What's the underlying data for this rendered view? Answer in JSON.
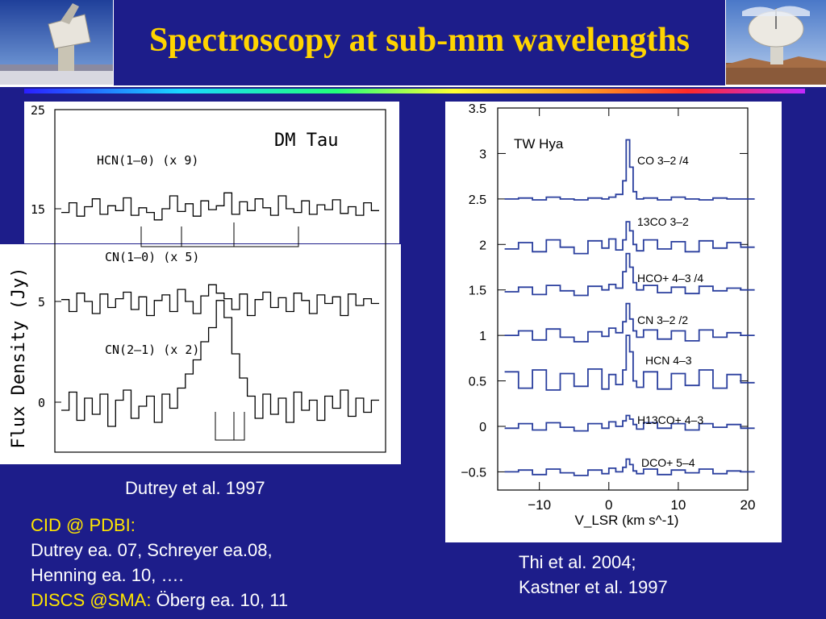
{
  "slide": {
    "title": "Spectroscopy at sub-mm wavelengths",
    "caption_left": "Dutrey et al. 1997",
    "refs": {
      "cid_label": "CID @ PDBI:",
      "line1": "Dutrey ea. 07, Schreyer ea.08,",
      "line2": "Henning ea. 10, ….",
      "discs_label": "DISCS @SMA:",
      "discs_text": " Öberg ea. 10, 11"
    },
    "caption_right": [
      "Thi et al. 2004;",
      "Kastner et al. 1997"
    ]
  },
  "colors": {
    "background": "#1d1d8a",
    "title": "#ffd400",
    "yellow_text": "#ffe600",
    "spectrum_blue": "#2a3f9e"
  },
  "chart_data": [
    {
      "type": "line",
      "title": "DM Tau",
      "xlabel": "",
      "ylabel": "Flux Density (Jy)",
      "ylim": [
        -4,
        25
      ],
      "yticks": [
        "25",
        "15",
        "5",
        "0"
      ],
      "grid": false,
      "series": [
        {
          "name": "HCN(1–0) (x 9)",
          "x": [
            -20,
            -19,
            -18,
            -17,
            -16,
            -15,
            -14,
            -13,
            -12,
            -11,
            -10,
            -9,
            -8,
            -7,
            -6,
            -5,
            -4,
            -3,
            -2,
            -1,
            0,
            1,
            2,
            3,
            4,
            5,
            6,
            7,
            8,
            9,
            10,
            11,
            12,
            13,
            14,
            15,
            16,
            17,
            18,
            19,
            20
          ],
          "values": [
            14.6,
            15.6,
            14.2,
            15.2,
            16.0,
            14.4,
            15.3,
            14.8,
            16.1,
            14.3,
            15.1,
            14.6,
            13.8,
            15.0,
            16.3,
            14.7,
            15.5,
            14.2,
            15.8,
            14.9,
            15.3,
            16.6,
            14.4,
            15.7,
            14.8,
            16.0,
            15.1,
            14.3,
            16.3,
            15.0,
            14.6,
            15.8,
            14.4,
            15.4,
            14.9,
            15.9,
            14.5,
            15.2,
            14.3,
            15.6,
            14.8
          ]
        },
        {
          "name": "CN(1–0) (x 5)",
          "x": [
            -20,
            -19,
            -18,
            -17,
            -16,
            -15,
            -14,
            -13,
            -12,
            -11,
            -10,
            -9,
            -8,
            -7,
            -6,
            -5,
            -4,
            -3,
            -2,
            -1,
            0,
            1,
            2,
            3,
            4,
            5,
            6,
            7,
            8,
            9,
            10,
            11,
            12,
            13,
            14,
            15,
            16,
            17,
            18,
            19,
            20
          ],
          "values": [
            5.2,
            4.5,
            5.9,
            5.0,
            4.4,
            5.8,
            4.7,
            5.3,
            6.0,
            4.6,
            5.5,
            4.3,
            5.1,
            5.7,
            4.5,
            6.3,
            5.0,
            4.4,
            5.6,
            6.8,
            5.9,
            5.3,
            4.6,
            5.8,
            4.3,
            5.2,
            6.0,
            4.7,
            5.4,
            4.5,
            5.9,
            5.1,
            4.4,
            5.7,
            4.9,
            5.5,
            4.3,
            5.8,
            4.8,
            5.3,
            4.9
          ]
        },
        {
          "name": "CN(2–1) (x 2)",
          "x": [
            -20,
            -19,
            -18,
            -17,
            -16,
            -15,
            -14,
            -13,
            -12,
            -11,
            -10,
            -9,
            -8,
            -7,
            -6,
            -5,
            -4,
            -3,
            -2,
            -1,
            0,
            1,
            2,
            3,
            4,
            5,
            6,
            7,
            8,
            9,
            10,
            11,
            12,
            13,
            14,
            15,
            16,
            17,
            18,
            19,
            20
          ],
          "values": [
            -0.4,
            0.5,
            -0.9,
            0.2,
            -0.6,
            0.4,
            -1.2,
            0.1,
            0.6,
            -0.8,
            -0.2,
            0.3,
            -1.0,
            0.4,
            -0.3,
            0.7,
            1.4,
            2.1,
            3.0,
            3.7,
            5.1,
            4.2,
            2.4,
            1.2,
            0.3,
            -0.8,
            0.4,
            -0.6,
            0.2,
            -1.0,
            0.5,
            -0.4,
            0.1,
            -0.9,
            0.3,
            -0.3,
            0.6,
            -0.7,
            0.2,
            -0.5,
            0.1
          ]
        }
      ],
      "annotations": [
        "DM Tau",
        "HCN(1–0) (x 9)",
        "CN(1–0) (x 5)",
        "CN(2–1) (x 2)"
      ]
    },
    {
      "type": "line",
      "title": "TW Hya",
      "xlabel": "V_LSR (km s^-1)",
      "ylabel": "",
      "xlim": [
        -16,
        20
      ],
      "ylim": [
        -0.7,
        3.5
      ],
      "xticks": [
        "−10",
        "0",
        "10",
        "20"
      ],
      "yticks": [
        "3.5",
        "3",
        "2.5",
        "2",
        "1.5",
        "1",
        "0.5",
        "0",
        "−0.5"
      ],
      "grid": false,
      "series": [
        {
          "name": "CO 3–2 /4",
          "x": [
            -15,
            -13,
            -11,
            -9,
            -7,
            -5,
            -3,
            -1,
            0,
            1,
            2,
            2.5,
            3,
            3.5,
            4,
            5,
            7,
            9,
            11,
            13,
            15,
            17,
            19
          ],
          "values": [
            2.5,
            2.51,
            2.49,
            2.52,
            2.5,
            2.49,
            2.51,
            2.5,
            2.52,
            2.55,
            2.7,
            3.15,
            2.85,
            2.58,
            2.5,
            2.51,
            2.49,
            2.52,
            2.5,
            2.49,
            2.51,
            2.5,
            2.5
          ]
        },
        {
          "name": "13CO 3–2",
          "x": [
            -15,
            -13,
            -11,
            -9,
            -7,
            -5,
            -3,
            -1,
            0,
            1,
            2,
            2.5,
            3,
            3.5,
            4,
            5,
            7,
            9,
            11,
            13,
            15,
            17,
            19
          ],
          "values": [
            1.95,
            2.02,
            1.92,
            2.05,
            1.97,
            1.9,
            2.04,
            1.96,
            2.06,
            1.94,
            2.05,
            2.25,
            2.15,
            2.0,
            1.93,
            2.05,
            1.95,
            2.03,
            1.92,
            2.04,
            1.96,
            2.02,
            1.97
          ]
        },
        {
          "name": "HCO+ 4–3 /4",
          "x": [
            -15,
            -13,
            -11,
            -9,
            -7,
            -5,
            -3,
            -1,
            0,
            1,
            2,
            2.5,
            3,
            3.5,
            4,
            5,
            7,
            9,
            11,
            13,
            15,
            17,
            19
          ],
          "values": [
            1.48,
            1.53,
            1.45,
            1.55,
            1.49,
            1.44,
            1.54,
            1.5,
            1.56,
            1.52,
            1.7,
            1.9,
            1.75,
            1.58,
            1.5,
            1.55,
            1.47,
            1.53,
            1.46,
            1.54,
            1.49,
            1.52,
            1.5
          ]
        },
        {
          "name": "CN 3–2 /2",
          "x": [
            -15,
            -13,
            -11,
            -9,
            -7,
            -5,
            -3,
            -1,
            0,
            1,
            2,
            2.5,
            3,
            3.5,
            4,
            5,
            7,
            9,
            11,
            13,
            15,
            17,
            19
          ],
          "values": [
            1.0,
            1.05,
            0.95,
            1.07,
            0.98,
            0.93,
            1.04,
            0.99,
            1.08,
            1.03,
            1.15,
            1.35,
            1.18,
            1.05,
            0.98,
            1.06,
            0.96,
            1.05,
            0.94,
            1.06,
            0.98,
            1.03,
            1.0
          ]
        },
        {
          "name": "HCN 4–3",
          "x": [
            -15,
            -13,
            -11,
            -9,
            -7,
            -5,
            -3,
            -1,
            0,
            1,
            2,
            2.5,
            3,
            3.5,
            4,
            5,
            7,
            9,
            11,
            13,
            15,
            17,
            19
          ],
          "values": [
            0.6,
            0.42,
            0.62,
            0.4,
            0.58,
            0.44,
            0.63,
            0.41,
            0.57,
            0.46,
            0.62,
            1.0,
            0.82,
            0.5,
            0.43,
            0.6,
            0.41,
            0.58,
            0.45,
            0.62,
            0.42,
            0.57,
            0.48
          ]
        },
        {
          "name": "H13CO+ 4–3",
          "x": [
            -15,
            -13,
            -11,
            -9,
            -7,
            -5,
            -3,
            -1,
            0,
            1,
            2,
            2.5,
            3,
            3.5,
            4,
            5,
            7,
            9,
            11,
            13,
            15,
            17,
            19
          ],
          "values": [
            -0.02,
            0.03,
            -0.04,
            0.04,
            -0.01,
            -0.05,
            0.03,
            -0.02,
            0.05,
            0.0,
            0.06,
            0.12,
            0.08,
            0.02,
            -0.03,
            0.04,
            -0.02,
            0.03,
            -0.04,
            0.03,
            -0.01,
            0.02,
            -0.02
          ]
        },
        {
          "name": "DCO+ 5–4",
          "x": [
            -15,
            -13,
            -11,
            -9,
            -7,
            -5,
            -3,
            -1,
            0,
            1,
            2,
            2.5,
            3,
            3.5,
            4,
            5,
            7,
            9,
            11,
            13,
            15,
            17,
            19
          ],
          "values": [
            -0.5,
            -0.48,
            -0.53,
            -0.47,
            -0.51,
            -0.54,
            -0.48,
            -0.52,
            -0.46,
            -0.5,
            -0.45,
            -0.36,
            -0.42,
            -0.49,
            -0.52,
            -0.47,
            -0.53,
            -0.48,
            -0.51,
            -0.47,
            -0.52,
            -0.49,
            -0.5
          ]
        }
      ],
      "annotations": [
        "TW Hya",
        "CO 3–2 /4",
        "13CO 3–2",
        "HCO+ 4–3 /4",
        "CN 3–2 /2",
        "HCN 4–3",
        "H13CO+ 4–3",
        "DCO+ 5–4"
      ]
    }
  ]
}
